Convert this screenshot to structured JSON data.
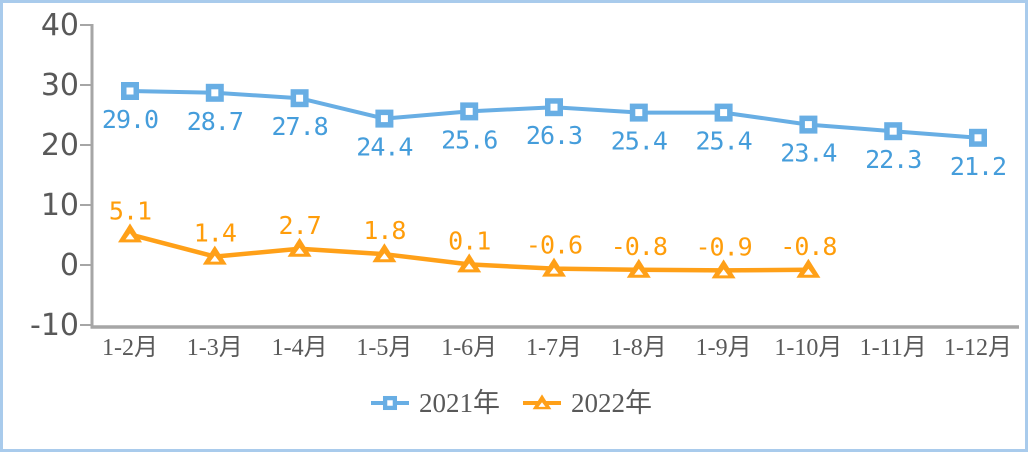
{
  "chart_data": {
    "type": "line",
    "title": "",
    "xlabel": "",
    "ylabel": "",
    "categories": [
      "1-2月",
      "1-3月",
      "1-4月",
      "1-5月",
      "1-6月",
      "1-7月",
      "1-8月",
      "1-9月",
      "1-10月",
      "1-11月",
      "1-12月"
    ],
    "series": [
      {
        "name": "2021年",
        "marker": "square",
        "color": "#68AEE4",
        "label_color": "#459DDB",
        "values": [
          29.0,
          28.7,
          27.8,
          24.4,
          25.6,
          26.3,
          25.4,
          25.4,
          23.4,
          22.3,
          21.2
        ]
      },
      {
        "name": "2022年",
        "marker": "triangle",
        "color": "#FFA018",
        "label_color": "#FF9D0A",
        "values": [
          5.1,
          1.4,
          2.7,
          1.8,
          0.1,
          -0.6,
          -0.8,
          -0.9,
          -0.8
        ]
      }
    ],
    "ylim": [
      -10,
      40
    ],
    "y_ticks": [
      40,
      30,
      20,
      10,
      0,
      -10
    ],
    "grid": false,
    "legend_position": "bottom",
    "axis_color": "#A6A6A6",
    "tick_label_color": "#595959",
    "frame_border_color": "#A9CBEC"
  }
}
